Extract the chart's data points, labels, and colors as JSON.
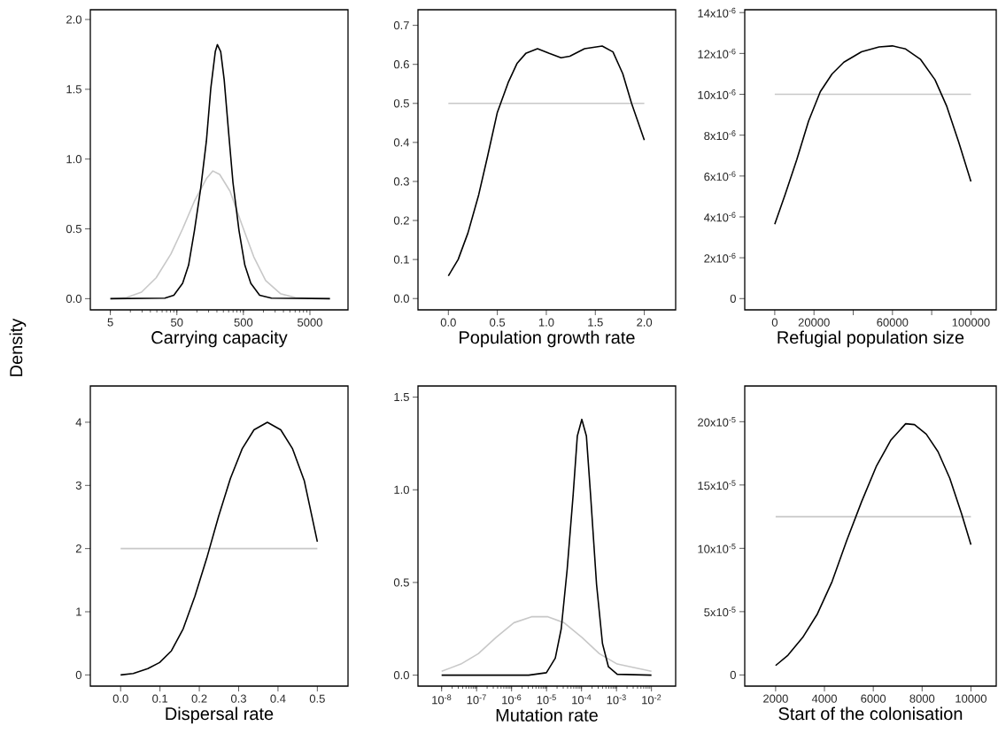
{
  "chart_data": [
    {
      "type": "line",
      "xlabel": "Carrying capacity",
      "ylabel": "Density",
      "log": "x",
      "xlim": [
        2.5,
        18700
      ],
      "ylim": [
        -0.08,
        2.07
      ],
      "xticks": [
        5,
        50,
        500,
        5000
      ],
      "yticks": [
        {
          "value": 0,
          "label": "0.0"
        },
        {
          "value": 0.5,
          "label": "0.5"
        },
        {
          "value": 1,
          "label": "1.0"
        },
        {
          "value": 1.5,
          "label": "1.5"
        },
        {
          "value": 2,
          "label": "2.0"
        }
      ],
      "series": [
        {
          "color": "#c8c8c8",
          "x": [
            5,
            8.8,
            14.7,
            24.4,
            40.7,
            61,
            92,
            139,
            174,
            220,
            315,
            475,
            716,
            1080,
            1800,
            3000,
            10000
          ],
          "values": [
            0,
            0.008,
            0.047,
            0.15,
            0.32,
            0.5,
            0.7,
            0.86,
            0.915,
            0.89,
            0.77,
            0.53,
            0.3,
            0.13,
            0.036,
            0.008,
            0
          ]
        },
        {
          "color": "#000000",
          "x": [
            5,
            33,
            45,
            61,
            75,
            92,
            114,
            139,
            162,
            189,
            203,
            228,
            257,
            300,
            349,
            429,
            526,
            646,
            878,
            1320,
            10000
          ],
          "values": [
            0,
            0.004,
            0.025,
            0.11,
            0.24,
            0.49,
            0.79,
            1.13,
            1.51,
            1.77,
            1.82,
            1.77,
            1.57,
            1.19,
            0.83,
            0.49,
            0.24,
            0.11,
            0.025,
            0.004,
            0
          ]
        }
      ]
    },
    {
      "type": "line",
      "xlabel": "Population growth rate",
      "xlim": [
        -0.31,
        2.32
      ],
      "ylim": [
        -0.029,
        0.74
      ],
      "xticks": [
        {
          "value": 0,
          "label": "0.0"
        },
        {
          "value": 0.5,
          "label": "0.5"
        },
        {
          "value": 1,
          "label": "1.0"
        },
        {
          "value": 1.5,
          "label": "1.5"
        },
        {
          "value": 2,
          "label": "2.0"
        }
      ],
      "yticks": [
        {
          "value": 0,
          "label": "0.0"
        },
        {
          "value": 0.1,
          "label": "0.1"
        },
        {
          "value": 0.2,
          "label": "0.2"
        },
        {
          "value": 0.3,
          "label": "0.3"
        },
        {
          "value": 0.4,
          "label": "0.4"
        },
        {
          "value": 0.5,
          "label": "0.5"
        },
        {
          "value": 0.6,
          "label": "0.6"
        },
        {
          "value": 0.7,
          "label": "0.7"
        }
      ],
      "series": [
        {
          "color": "#c8c8c8",
          "x": [
            0,
            2
          ],
          "values": [
            0.5,
            0.5
          ]
        },
        {
          "color": "#000000",
          "x": [
            0,
            0.1,
            0.2,
            0.31,
            0.4,
            0.5,
            0.61,
            0.7,
            0.79,
            0.91,
            1.03,
            1.15,
            1.24,
            1.39,
            1.57,
            1.68,
            1.78,
            1.87,
            2.0
          ],
          "values": [
            0.058,
            0.1,
            0.168,
            0.266,
            0.364,
            0.477,
            0.553,
            0.602,
            0.628,
            0.64,
            0.628,
            0.617,
            0.621,
            0.64,
            0.647,
            0.632,
            0.576,
            0.5,
            0.406
          ]
        }
      ]
    },
    {
      "type": "line",
      "xlabel": "Refugial population size",
      "xlim": [
        -15300,
        112900
      ],
      "ylim": [
        -5.5e-07,
        1.414e-05
      ],
      "xticks": [
        0,
        20000,
        {
          "value": 40000,
          "label": null
        },
        60000,
        {
          "value": 80000,
          "label": null
        },
        100000
      ],
      "yticks": [
        0,
        {
          "value": 2e-06,
          "label": "2x10$^{-6}$"
        },
        {
          "value": 4e-06,
          "label": "4x10$^{-6}$"
        },
        {
          "value": 6e-06,
          "label": "6x10$^{-6}$"
        },
        {
          "value": 8e-06,
          "label": "8x10$^{-6}$"
        },
        {
          "value": 1e-05,
          "label": "10x10$^{-6}$"
        },
        {
          "value": 1.2e-05,
          "label": "12x10$^{-6}$"
        },
        {
          "value": 1.4e-05,
          "label": "14x10$^{-6}$"
        }
      ],
      "series": [
        {
          "color": "#c8c8c8",
          "x": [
            0,
            100000
          ],
          "values": [
            1e-05,
            1e-05
          ]
        },
        {
          "color": "#000000",
          "x": [
            0,
            5250,
            11240,
            17240,
            23230,
            29230,
            35230,
            44220,
            53210,
            59960,
            66700,
            74200,
            81700,
            87700,
            93700,
            100000
          ],
          "values": [
            3.64e-06,
            5.08e-06,
            6.81e-06,
            8.69e-06,
            1.013e-05,
            1.1e-05,
            1.157e-05,
            1.208e-05,
            1.232e-05,
            1.237e-05,
            1.222e-05,
            1.172e-05,
            1.071e-05,
            9.41e-06,
            7.68e-06,
            5.73e-06
          ]
        }
      ]
    },
    {
      "type": "line",
      "xlabel": "Dispersal rate",
      "xlim": [
        -0.077,
        0.578
      ],
      "ylim": [
        -0.177,
        4.574
      ],
      "xticks": [
        {
          "value": 0,
          "label": "0.0"
        },
        {
          "value": 0.1,
          "label": "0.1"
        },
        {
          "value": 0.2,
          "label": "0.2"
        },
        {
          "value": 0.3,
          "label": "0.3"
        },
        {
          "value": 0.4,
          "label": "0.4"
        },
        {
          "value": 0.5,
          "label": "0.5"
        }
      ],
      "yticks": [
        0,
        1,
        2,
        3,
        4
      ],
      "series": [
        {
          "color": "#c8c8c8",
          "x": [
            0,
            0.5
          ],
          "values": [
            2,
            2
          ]
        },
        {
          "color": "#000000",
          "x": [
            0,
            0.032,
            0.069,
            0.099,
            0.129,
            0.159,
            0.189,
            0.219,
            0.249,
            0.279,
            0.309,
            0.339,
            0.373,
            0.407,
            0.437,
            0.467,
            0.5
          ],
          "values": [
            0,
            0.023,
            0.1,
            0.196,
            0.38,
            0.73,
            1.25,
            1.85,
            2.51,
            3.11,
            3.58,
            3.88,
            4.0,
            3.88,
            3.58,
            3.07,
            2.11
          ]
        }
      ]
    },
    {
      "type": "line",
      "xlabel": "Mutation rate",
      "log": "x",
      "xlim": [
        2.11e-09,
        0.0492
      ],
      "ylim": [
        -0.059,
        1.56
      ],
      "xticks": [
        {
          "value": 1e-08,
          "label": "10$^{-8}$"
        },
        {
          "value": 1e-07,
          "label": "10$^{-7}$"
        },
        {
          "value": 1e-06,
          "label": "10$^{-6}$"
        },
        {
          "value": 1e-05,
          "label": "10$^{-5}$"
        },
        {
          "value": 0.0001,
          "label": "10$^{-4}$"
        },
        {
          "value": 0.001,
          "label": "10$^{-3}$"
        },
        {
          "value": 0.01,
          "label": "10$^{-2}$"
        }
      ],
      "yticks": [
        {
          "value": 0,
          "label": "0.0"
        },
        {
          "value": 0.5,
          "label": "0.5"
        },
        {
          "value": 1,
          "label": "1.0"
        },
        {
          "value": 1.5,
          "label": "1.5"
        }
      ],
      "series": [
        {
          "color": "#c8c8c8",
          "x": [
            1e-08,
            3.55e-08,
            1.12e-07,
            3.63e-07,
            1.17e-06,
            3.72e-06,
            1.1e-05,
            3.16e-05,
            0.000102,
            0.000324,
            0.00105,
            0.01
          ],
          "values": [
            0.021,
            0.06,
            0.116,
            0.204,
            0.283,
            0.315,
            0.315,
            0.283,
            0.204,
            0.116,
            0.06,
            0.021
          ]
        },
        {
          "color": "#000000",
          "x": [
            1e-08,
            3.09e-06,
            9.9e-06,
            1.78e-05,
            2.63e-05,
            3.89e-05,
            5.75e-05,
            7.59e-05,
            0.000102,
            0.000138,
            0.000182,
            0.000269,
            0.000398,
            0.000589,
            0.00105,
            0.01
          ],
          "values": [
            0,
            0,
            0.013,
            0.092,
            0.25,
            0.57,
            0.97,
            1.29,
            1.38,
            1.29,
            0.97,
            0.49,
            0.17,
            0.045,
            0.005,
            0
          ]
        }
      ]
    },
    {
      "type": "line",
      "xlabel": "Start of the colonisation",
      "xlim": [
        735,
        11036
      ],
      "ylim": [
        -8.8e-06,
        0.0002282
      ],
      "xticks": [
        2000,
        4000,
        6000,
        8000,
        10000
      ],
      "yticks": [
        0,
        {
          "value": 5e-05,
          "label": "5x10$^{-5}$"
        },
        {
          "value": 0.0001,
          "label": "10x10$^{-5}$"
        },
        {
          "value": 0.00015,
          "label": "15x10$^{-5}$"
        },
        {
          "value": 0.0002,
          "label": "20x10$^{-5}$"
        }
      ],
      "series": [
        {
          "color": "#c8c8c8",
          "x": [
            2000,
            10000
          ],
          "values": [
            0.000125,
            0.000125
          ]
        },
        {
          "color": "#000000",
          "x": [
            2000,
            2506,
            3108,
            3711,
            4314,
            4916,
            5519,
            6121,
            6724,
            7326,
            7688,
            8170,
            8652,
            9134,
            9616,
            10000
          ],
          "values": [
            7.45e-06,
            1.56e-05,
            2.96e-05,
            4.82e-05,
            7.38e-05,
            0.0001064,
            0.0001367,
            0.0001646,
            0.0001856,
            0.0001984,
            0.0001977,
            0.0001902,
            0.0001763,
            0.0001553,
            0.0001274,
            0.0001029
          ]
        }
      ]
    }
  ]
}
